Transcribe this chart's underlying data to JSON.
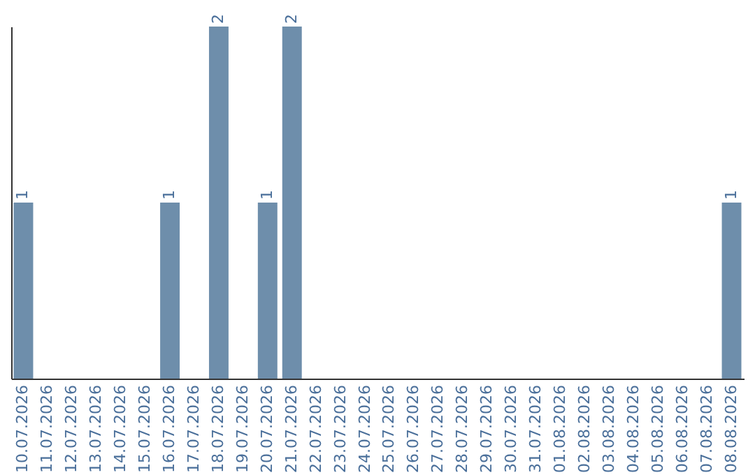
{
  "chart_data": {
    "type": "bar",
    "categories": [
      "10.07.2026",
      "11.07.2026",
      "12.07.2026",
      "13.07.2026",
      "14.07.2026",
      "15.07.2026",
      "16.07.2026",
      "17.07.2026",
      "18.07.2026",
      "19.07.2026",
      "20.07.2026",
      "21.07.2026",
      "22.07.2026",
      "23.07.2026",
      "24.07.2026",
      "25.07.2026",
      "26.07.2026",
      "27.07.2026",
      "28.07.2026",
      "29.07.2026",
      "30.07.2026",
      "31.07.2026",
      "01.08.2026",
      "02.08.2026",
      "03.08.2026",
      "04.08.2026",
      "05.08.2026",
      "06.08.2026",
      "07.08.2026",
      "08.08.2026"
    ],
    "values": [
      1,
      0,
      0,
      0,
      0,
      0,
      1,
      0,
      2,
      0,
      1,
      2,
      0,
      0,
      0,
      0,
      0,
      0,
      0,
      0,
      0,
      0,
      0,
      0,
      0,
      0,
      0,
      0,
      0,
      1
    ],
    "value_labels": [
      "1",
      null,
      null,
      null,
      null,
      null,
      "1",
      null,
      "2",
      null,
      "1",
      "2",
      null,
      null,
      null,
      null,
      null,
      null,
      null,
      null,
      null,
      null,
      null,
      null,
      null,
      null,
      null,
      null,
      null,
      "1"
    ],
    "color": "#6e8eab",
    "ylim": [
      0,
      2
    ],
    "tick_labels": "x",
    "grid": false
  }
}
